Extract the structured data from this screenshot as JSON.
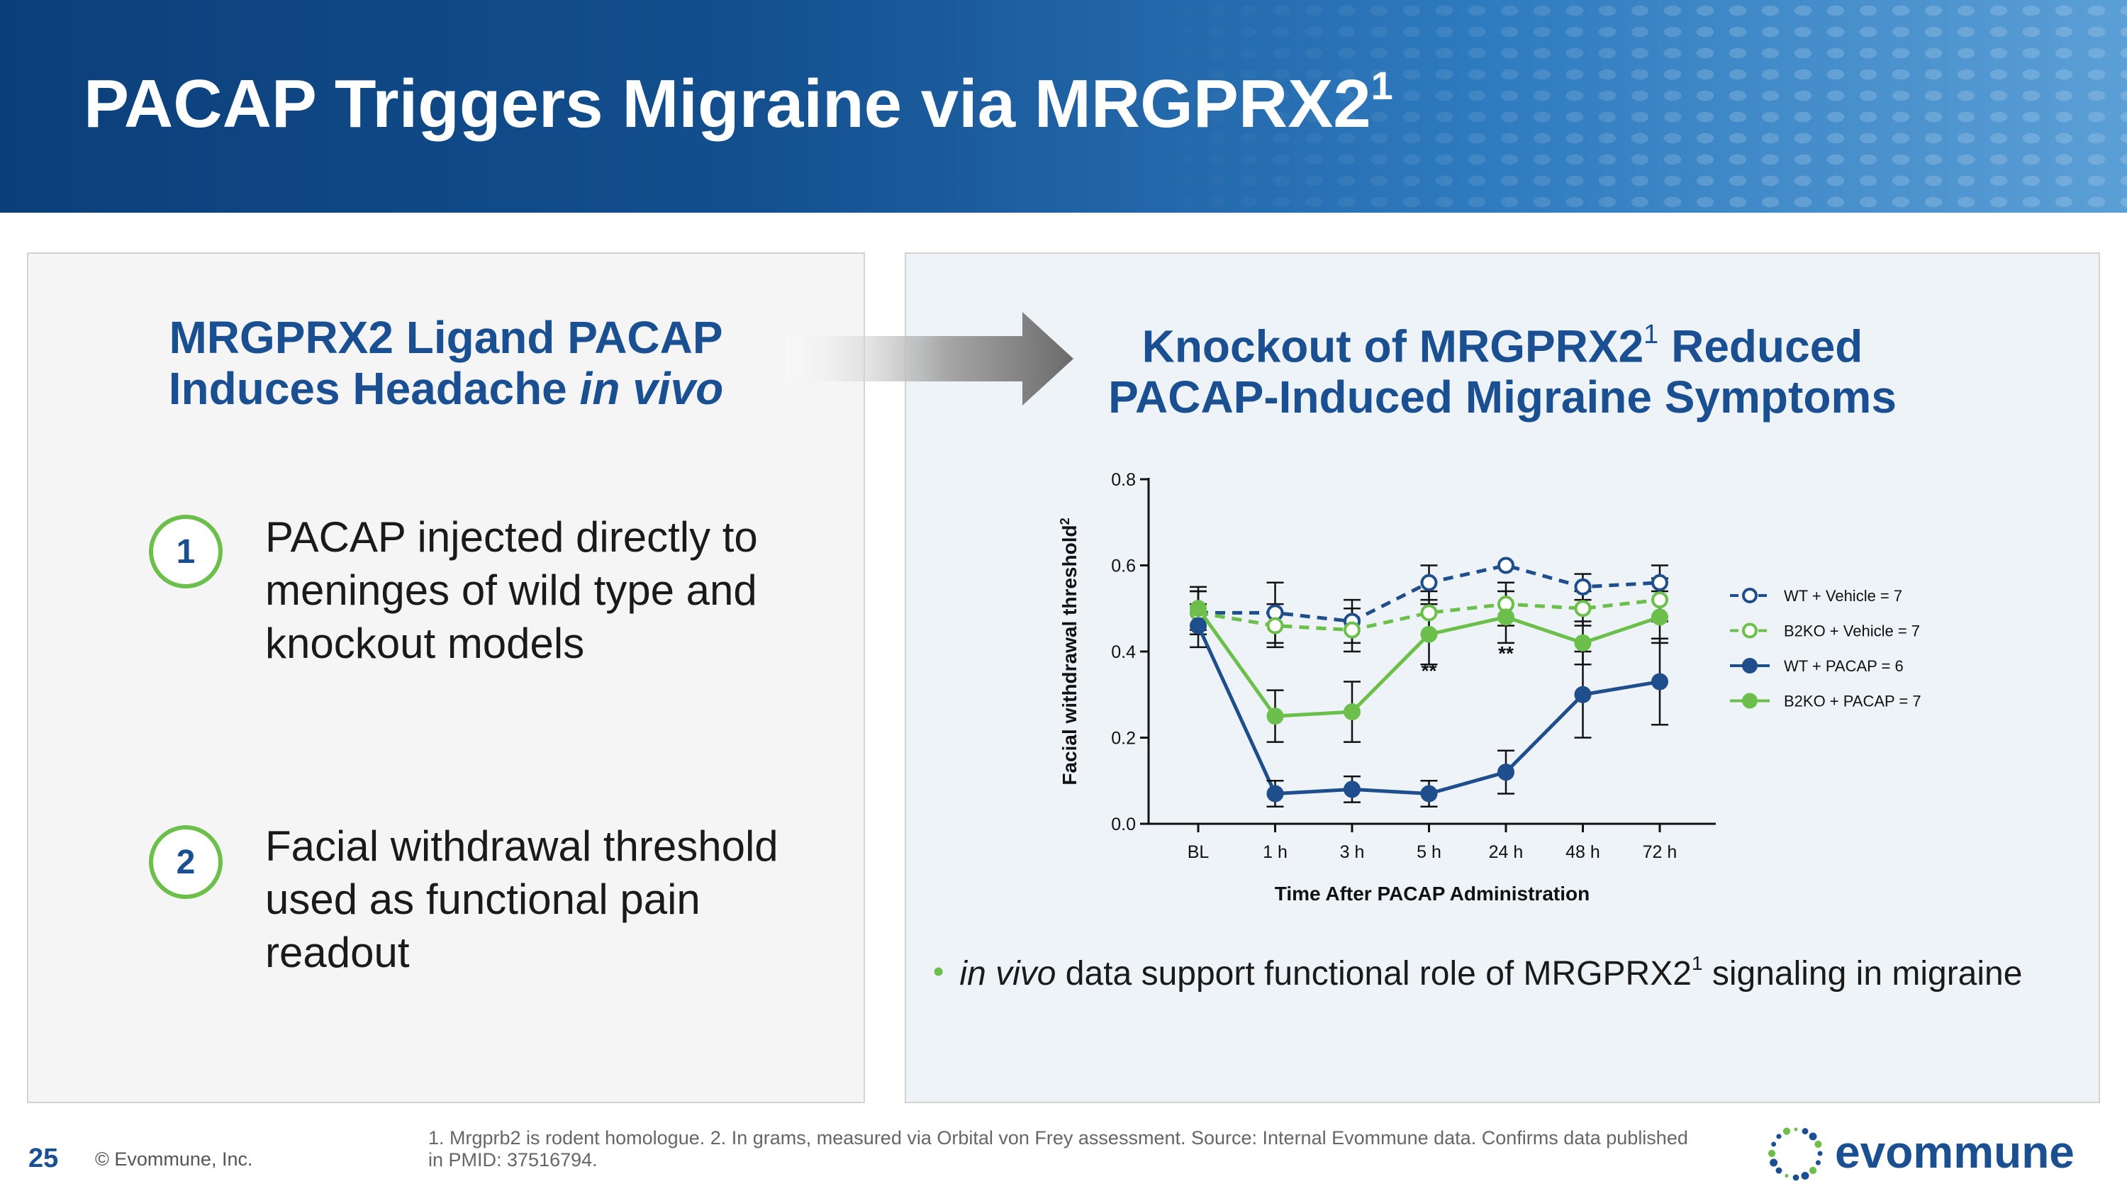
{
  "header": {
    "title": "PACAP Triggers Migraine via MRGPRX2",
    "title_sup": "1"
  },
  "left_panel": {
    "heading_line1": "MRGPRX2 Ligand PACAP",
    "heading_line2_plain": "Induces Headache ",
    "heading_line2_italic": "in vivo",
    "steps": [
      {
        "num": "1",
        "text": "PACAP injected directly to meninges of wild type and knockout models"
      },
      {
        "num": "2",
        "text": "Facial withdrawal threshold used as functional pain readout"
      }
    ]
  },
  "right_panel": {
    "heading_line1_a": "Knockout of MRGPRX2",
    "heading_line1_sup": "1",
    "heading_line1_b": " Reduced",
    "heading_line2": "PACAP-Induced Migraine Symptoms"
  },
  "chart_data": {
    "type": "line",
    "ylabel": "Facial withdrawal threshold",
    "ylabel_sup": "2",
    "xlabel": "Time After PACAP Administration",
    "categories": [
      "BL",
      "1 h",
      "3 h",
      "5 h",
      "24 h",
      "48 h",
      "72 h"
    ],
    "ylim": [
      0.0,
      0.8
    ],
    "yticks": [
      "0.0",
      "0.2",
      "0.4",
      "0.6",
      "0.8"
    ],
    "grid": false,
    "legend_position": "right",
    "series": [
      {
        "name": "WT + Vehicle = 7",
        "color": "#1f4e8c",
        "dashed": true,
        "marker": "open",
        "values": [
          0.49,
          0.49,
          0.47,
          0.56,
          0.6,
          0.55,
          0.56
        ],
        "errors": [
          0.05,
          0.07,
          0.05,
          0.04,
          0.0,
          0.03,
          0.04
        ]
      },
      {
        "name": "B2KO + Vehicle = 7",
        "color": "#6cbf4b",
        "dashed": true,
        "marker": "open",
        "values": [
          0.49,
          0.46,
          0.45,
          0.49,
          0.51,
          0.5,
          0.52
        ],
        "errors": [
          0.05,
          0.05,
          0.05,
          0.05,
          0.05,
          0.04,
          0.05
        ]
      },
      {
        "name": "WT + PACAP = 6",
        "color": "#1f4e8c",
        "dashed": false,
        "marker": "filled",
        "values": [
          0.46,
          0.07,
          0.08,
          0.07,
          0.12,
          0.3,
          0.33
        ],
        "errors": [
          0.05,
          0.03,
          0.03,
          0.03,
          0.05,
          0.1,
          0.1
        ]
      },
      {
        "name": "B2KO + PACAP = 7",
        "color": "#6cbf4b",
        "dashed": false,
        "marker": "filled",
        "values": [
          0.5,
          0.25,
          0.26,
          0.44,
          0.48,
          0.42,
          0.48
        ],
        "errors": [
          0.05,
          0.06,
          0.07,
          0.07,
          0.06,
          0.05,
          0.06
        ]
      }
    ],
    "annotations": [
      {
        "x": "5 h",
        "text": "**",
        "y": 0.34
      },
      {
        "x": "24 h",
        "text": "**",
        "y": 0.38
      }
    ]
  },
  "bullet": {
    "italic": "in vivo",
    "text_a": " data support functional role of MRGPRX2",
    "sup": "1",
    "text_b": " signaling in migraine"
  },
  "footer": {
    "page_number": "25",
    "copyright": "© Evommune, Inc.",
    "footnote": "1. Mrgprb2 is rodent homologue.  2. In grams, measured via Orbital von Frey assessment.  Source: Internal Evommune data. Confirms data published in PMID: 37516794.",
    "logo_text": "evommune"
  },
  "colors": {
    "brand_blue": "#1a4f91",
    "accent_green": "#6cbf4b"
  }
}
